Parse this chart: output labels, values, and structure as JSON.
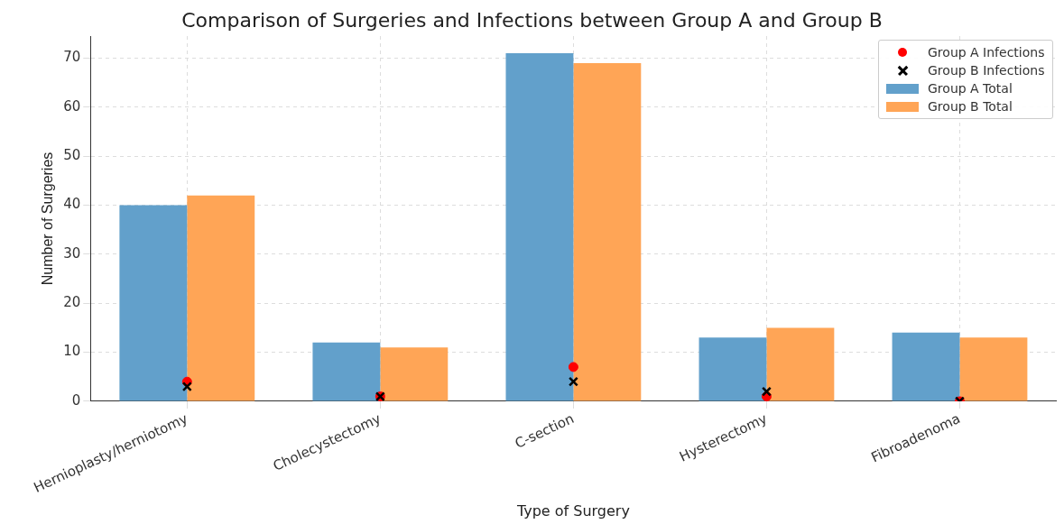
{
  "chart_data": {
    "type": "bar",
    "title": "Comparison of Surgeries and Infections between Group A and Group B",
    "xlabel": "Type of Surgery",
    "ylabel": "Number of Surgeries",
    "categories": [
      "Hernioplasty/herniotomy",
      "Cholecystectomy",
      "C-section",
      "Hysterectomy",
      "Fibroadenoma"
    ],
    "series": [
      {
        "name": "Group A Infections",
        "type": "scatter",
        "marker": "circle",
        "color": "#ff0000",
        "values": [
          4,
          1,
          7,
          1,
          0
        ]
      },
      {
        "name": "Group B Infections",
        "type": "scatter",
        "marker": "cross",
        "color": "#000000",
        "values": [
          3,
          1,
          4,
          2,
          0
        ]
      },
      {
        "name": "Group A Total",
        "type": "bar",
        "color": "#62a0cb",
        "values": [
          40,
          12,
          71,
          13,
          14
        ]
      },
      {
        "name": "Group B Total",
        "type": "bar",
        "color": "#ffa556",
        "values": [
          42,
          11,
          69,
          15,
          13
        ]
      }
    ],
    "ylim": [
      0,
      74.5
    ],
    "yticks": [
      0,
      10,
      20,
      30,
      40,
      50,
      60,
      70
    ],
    "grid": true,
    "legend": "top right"
  }
}
